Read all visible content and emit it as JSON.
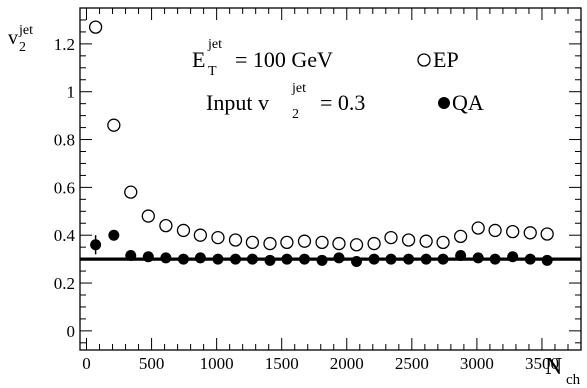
{
  "chart_data": {
    "type": "scatter",
    "xlim": [
      -50,
      3800
    ],
    "ylim": [
      -0.08,
      1.35
    ],
    "grid": false,
    "x_ticks": [
      0,
      500,
      1000,
      1500,
      2000,
      2500,
      3000,
      3500
    ],
    "x_tick_labels": [
      "0",
      "500",
      "1000",
      "1500",
      "2000",
      "2500",
      "3000",
      "3500"
    ],
    "y_ticks": [
      0,
      0.2,
      0.4,
      0.6,
      0.8,
      1.0,
      1.2
    ],
    "y_tick_labels": [
      "0",
      "0.2",
      "0.4",
      "0.6",
      "0.8",
      "1",
      "1.2"
    ],
    "xlabel": {
      "main": "N",
      "sub": "ch"
    },
    "ylabel": {
      "main": "v",
      "sub": "2",
      "sup": "jet"
    },
    "reference_line": {
      "y": 0.3
    },
    "annotations": {
      "energy": {
        "main": "E",
        "sub": "T",
        "sup": "jet",
        "rest": "= 100 GeV"
      },
      "input": {
        "main": "Input v",
        "sub": "2",
        "sup": "jet",
        "rest": "= 0.3"
      }
    },
    "legend_placement": "top-right",
    "series": [
      {
        "name": "EP",
        "marker": "open-circle",
        "x": [
          70,
          210,
          340,
          475,
          610,
          745,
          875,
          1010,
          1145,
          1275,
          1410,
          1540,
          1675,
          1810,
          1940,
          2075,
          2210,
          2340,
          2475,
          2610,
          2740,
          2875,
          3010,
          3140,
          3275,
          3410,
          3540
        ],
        "y": [
          1.27,
          0.86,
          0.58,
          0.48,
          0.44,
          0.42,
          0.4,
          0.39,
          0.38,
          0.37,
          0.365,
          0.37,
          0.375,
          0.37,
          0.365,
          0.36,
          0.365,
          0.39,
          0.38,
          0.375,
          0.37,
          0.395,
          0.43,
          0.42,
          0.415,
          0.41,
          0.405
        ]
      },
      {
        "name": "QA",
        "marker": "filled-circle",
        "x": [
          70,
          210,
          340,
          475,
          610,
          745,
          875,
          1010,
          1145,
          1275,
          1410,
          1540,
          1675,
          1810,
          1940,
          2075,
          2210,
          2340,
          2475,
          2610,
          2740,
          2875,
          3010,
          3140,
          3275,
          3410,
          3540
        ],
        "y": [
          0.36,
          0.4,
          0.315,
          0.31,
          0.305,
          0.3,
          0.305,
          0.3,
          0.3,
          0.3,
          0.295,
          0.3,
          0.3,
          0.295,
          0.305,
          0.29,
          0.3,
          0.3,
          0.3,
          0.3,
          0.3,
          0.315,
          0.305,
          0.3,
          0.31,
          0.3,
          0.295
        ],
        "yerr": [
          0.04,
          0.02,
          0.01,
          0.008,
          0.006,
          0.005,
          0.005,
          0.005,
          0.005,
          0.005,
          0.005,
          0.005,
          0.005,
          0.005,
          0.005,
          0.005,
          0.005,
          0.005,
          0.005,
          0.005,
          0.005,
          0.005,
          0.005,
          0.005,
          0.005,
          0.005,
          0.005
        ]
      }
    ]
  }
}
